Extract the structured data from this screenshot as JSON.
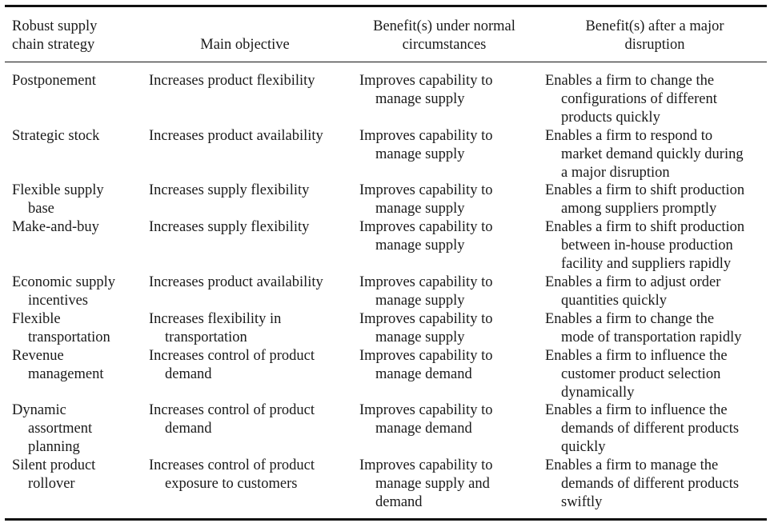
{
  "table": {
    "headers": [
      [
        "Robust supply",
        "chain strategy"
      ],
      [
        "Main objective"
      ],
      [
        "Benefit(s) under normal",
        "circumstances"
      ],
      [
        "Benefit(s) after a major",
        "disruption"
      ]
    ],
    "rows": [
      {
        "strategy": [
          "Postponement"
        ],
        "objective": [
          "Increases product flexibility"
        ],
        "normal": [
          "Improves capability to",
          "manage supply"
        ],
        "disruption": [
          "Enables a firm to change the",
          "configurations of different",
          "products quickly"
        ]
      },
      {
        "strategy": [
          "Strategic stock"
        ],
        "objective": [
          "Increases product availability"
        ],
        "normal": [
          "Improves capability to",
          "manage supply"
        ],
        "disruption": [
          "Enables a firm to respond to",
          "market demand quickly during",
          "a major disruption"
        ]
      },
      {
        "strategy": [
          "Flexible supply",
          "base"
        ],
        "objective": [
          "Increases supply flexibility"
        ],
        "normal": [
          "Improves capability to",
          "manage supply"
        ],
        "disruption": [
          "Enables a firm to shift production",
          "among suppliers promptly"
        ]
      },
      {
        "strategy": [
          "Make-and-buy"
        ],
        "objective": [
          "Increases supply flexibility"
        ],
        "normal": [
          "Improves capability to",
          "manage supply"
        ],
        "disruption": [
          "Enables a firm to shift production",
          "between in-house production",
          "facility and suppliers rapidly"
        ]
      },
      {
        "strategy": [
          "Economic supply",
          "incentives"
        ],
        "objective": [
          "Increases product availability"
        ],
        "normal": [
          "Improves capability to",
          "manage supply"
        ],
        "disruption": [
          "Enables a firm to adjust order",
          "quantities quickly"
        ]
      },
      {
        "strategy": [
          "Flexible",
          "transportation"
        ],
        "objective": [
          "Increases flexibility in",
          "transportation"
        ],
        "normal": [
          "Improves capability to",
          "manage supply"
        ],
        "disruption": [
          "Enables a firm to change the",
          "mode of transportation rapidly"
        ]
      },
      {
        "strategy": [
          "Revenue",
          "management"
        ],
        "objective": [
          "Increases control of product",
          "demand"
        ],
        "normal": [
          "Improves capability to",
          "manage demand"
        ],
        "disruption": [
          "Enables a firm to influence the",
          "customer product selection",
          "dynamically"
        ]
      },
      {
        "strategy": [
          "Dynamic",
          "assortment",
          "planning"
        ],
        "objective": [
          "Increases control of product",
          "demand"
        ],
        "normal": [
          "Improves capability to",
          "manage demand"
        ],
        "disruption": [
          "Enables a firm to influence the",
          "demands of different products",
          "quickly"
        ]
      },
      {
        "strategy": [
          "Silent product",
          "rollover"
        ],
        "objective": [
          "Increases control of product",
          "exposure to customers"
        ],
        "normal": [
          "Improves capability to",
          "manage supply and",
          "demand"
        ],
        "disruption": [
          "Enables a firm to manage the",
          "demands of different products",
          "swiftly"
        ]
      }
    ]
  }
}
